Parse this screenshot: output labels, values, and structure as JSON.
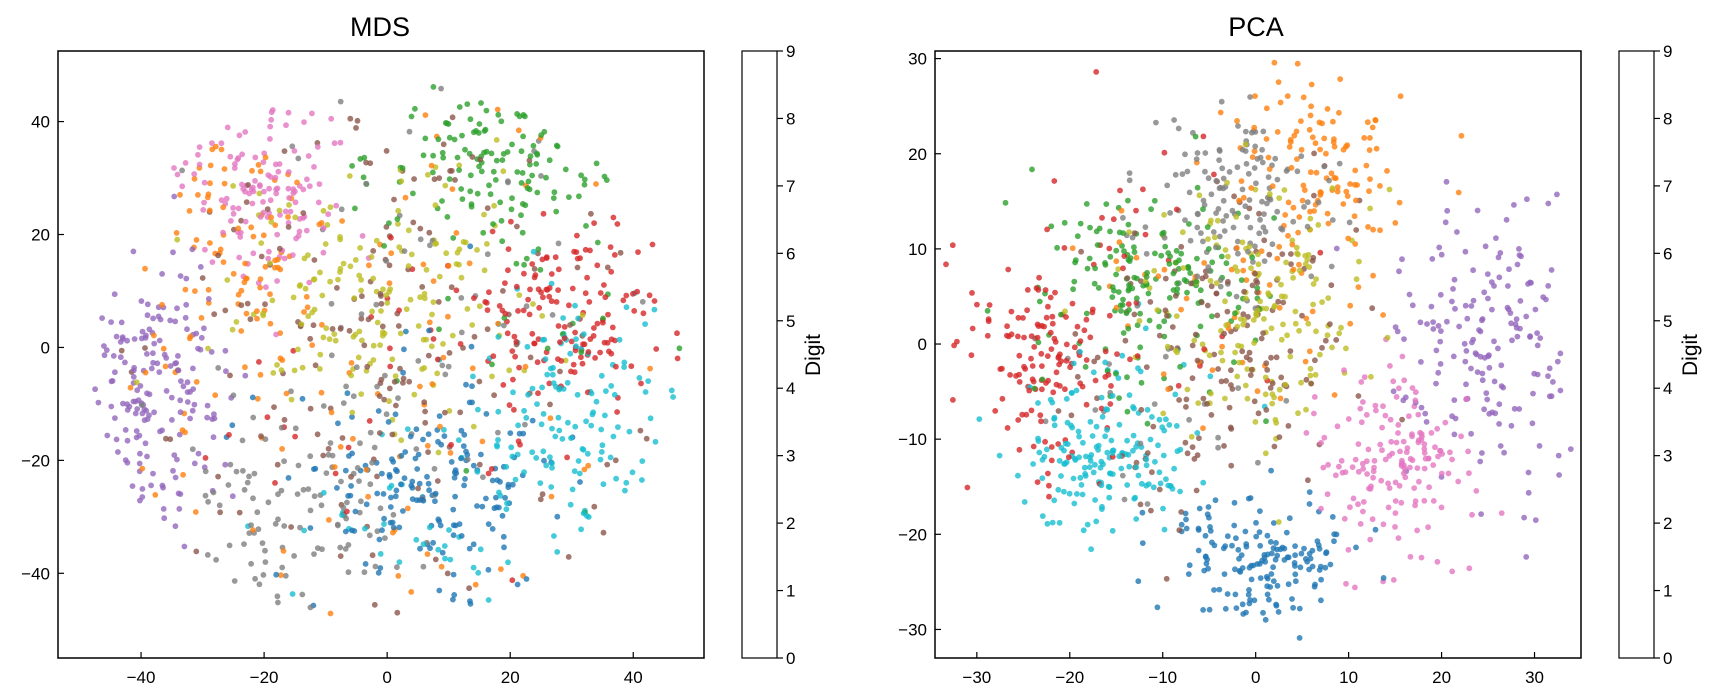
{
  "digit_colors": [
    "#1f77b4",
    "#ff7f0e",
    "#2ca02c",
    "#d62728",
    "#9467bd",
    "#8c564b",
    "#e377c2",
    "#7f7f7f",
    "#bcbd22",
    "#17becf"
  ],
  "colorbar": {
    "label": "Digit",
    "ticks": [
      "0",
      "1",
      "2",
      "3",
      "4",
      "5",
      "6",
      "7",
      "8",
      "9"
    ],
    "alpha": 0.7
  },
  "point_alpha": 0.8,
  "chart_data": [
    {
      "type": "scatter",
      "title": "MDS",
      "xlabel": "",
      "ylabel": "",
      "xlim": [
        -53.5,
        51.5
      ],
      "ylim": [
        -55,
        52.5
      ],
      "xticks": [
        -40,
        -20,
        0,
        20,
        40
      ],
      "xtick_labels": [
        "−40",
        "−20",
        "0",
        "20",
        "40"
      ],
      "yticks": [
        -40,
        -20,
        0,
        20,
        40
      ],
      "ytick_labels": [
        "−40",
        "−20",
        "0",
        "20",
        "40"
      ],
      "clusters": [
        {
          "digit": 0,
          "cx": 8,
          "cy": -25,
          "sx": 10,
          "sy": 7.5,
          "n": 150
        },
        {
          "digit": 0,
          "cx": -2,
          "cy": -15,
          "sx": 15,
          "sy": 14,
          "n": 25
        },
        {
          "digit": 1,
          "cx": -25,
          "cy": 14,
          "sx": 6.5,
          "sy": 14,
          "n": 85
        },
        {
          "digit": 1,
          "cx": 5,
          "cy": -5,
          "sx": 26,
          "sy": 26,
          "n": 85
        },
        {
          "digit": 2,
          "cx": 18,
          "cy": 34,
          "sx": 10,
          "sy": 7,
          "n": 120
        },
        {
          "digit": 2,
          "cx": 25,
          "cy": 12,
          "sx": 14,
          "sy": 14,
          "n": 25
        },
        {
          "digit": 3,
          "cx": 29,
          "cy": 6,
          "sx": 8.5,
          "sy": 8.5,
          "n": 145
        },
        {
          "digit": 3,
          "cx": 5,
          "cy": -10,
          "sx": 18,
          "sy": 18,
          "n": 30
        },
        {
          "digit": 4,
          "cx": -38,
          "cy": -8,
          "sx": 6,
          "sy": 13,
          "n": 170
        },
        {
          "digit": 5,
          "cx": 0,
          "cy": 0,
          "sx": 20,
          "sy": 25,
          "n": 170
        },
        {
          "digit": 6,
          "cx": -20,
          "cy": 28,
          "sx": 7,
          "sy": 8,
          "n": 130
        },
        {
          "digit": 7,
          "cx": -13,
          "cy": -27,
          "sx": 10,
          "sy": 10,
          "n": 110
        },
        {
          "digit": 7,
          "cx": 5,
          "cy": 10,
          "sx": 20,
          "sy": 22,
          "n": 50
        },
        {
          "digit": 8,
          "cx": 0,
          "cy": 8,
          "sx": 13,
          "sy": 12,
          "n": 170
        },
        {
          "digit": 9,
          "cx": 29,
          "cy": -12,
          "sx": 8,
          "sy": 10,
          "n": 135
        },
        {
          "digit": 9,
          "cx": 5,
          "cy": -28,
          "sx": 12,
          "sy": 10,
          "n": 35
        }
      ],
      "boundary_radius": 48
    },
    {
      "type": "scatter",
      "title": "PCA",
      "xlabel": "",
      "ylabel": "",
      "xlim": [
        -34.5,
        35
      ],
      "ylim": [
        -33,
        30.8
      ],
      "xticks": [
        -30,
        -20,
        -10,
        0,
        10,
        20,
        30
      ],
      "xtick_labels": [
        "−30",
        "−20",
        "−10",
        "0",
        "10",
        "20",
        "30"
      ],
      "yticks": [
        -30,
        -20,
        -10,
        0,
        10,
        20,
        30
      ],
      "ytick_labels": [
        "−30",
        "−20",
        "−10",
        "0",
        "10",
        "20",
        "30"
      ],
      "clusters": [
        {
          "digit": 0,
          "cx": 0,
          "cy": -22,
          "sx": 5,
          "sy": 3.5,
          "n": 160
        },
        {
          "digit": 1,
          "cx": 7,
          "cy": 19,
          "sx": 4.5,
          "sy": 5,
          "n": 110
        },
        {
          "digit": 1,
          "cx": 0,
          "cy": 5,
          "sx": 8,
          "sy": 7,
          "n": 60
        },
        {
          "digit": 2,
          "cx": -12,
          "cy": 6,
          "sx": 6,
          "sy": 5,
          "n": 170
        },
        {
          "digit": 3,
          "cx": -22,
          "cy": -2,
          "sx": 4,
          "sy": 6,
          "n": 140
        },
        {
          "digit": 3,
          "cx": -10,
          "cy": 10,
          "sx": 10,
          "sy": 8,
          "n": 25
        },
        {
          "digit": 4,
          "cx": 24,
          "cy": 0,
          "sx": 5,
          "sy": 8,
          "n": 170
        },
        {
          "digit": 5,
          "cx": -3,
          "cy": 0,
          "sx": 8,
          "sy": 8,
          "n": 160
        },
        {
          "digit": 6,
          "cx": 15,
          "cy": -13,
          "sx": 4,
          "sy": 4.5,
          "n": 160
        },
        {
          "digit": 7,
          "cx": -2,
          "cy": 15,
          "sx": 5,
          "sy": 5,
          "n": 140
        },
        {
          "digit": 7,
          "cx": -10,
          "cy": -10,
          "sx": 6,
          "sy": 5,
          "n": 20
        },
        {
          "digit": 8,
          "cx": 0,
          "cy": 3,
          "sx": 6,
          "sy": 7,
          "n": 170
        },
        {
          "digit": 9,
          "cx": -17,
          "cy": -12,
          "sx": 4.5,
          "sy": 3.5,
          "n": 150
        },
        {
          "digit": 9,
          "cx": -12,
          "cy": -6,
          "sx": 4,
          "sy": 5,
          "n": 30
        }
      ]
    }
  ]
}
